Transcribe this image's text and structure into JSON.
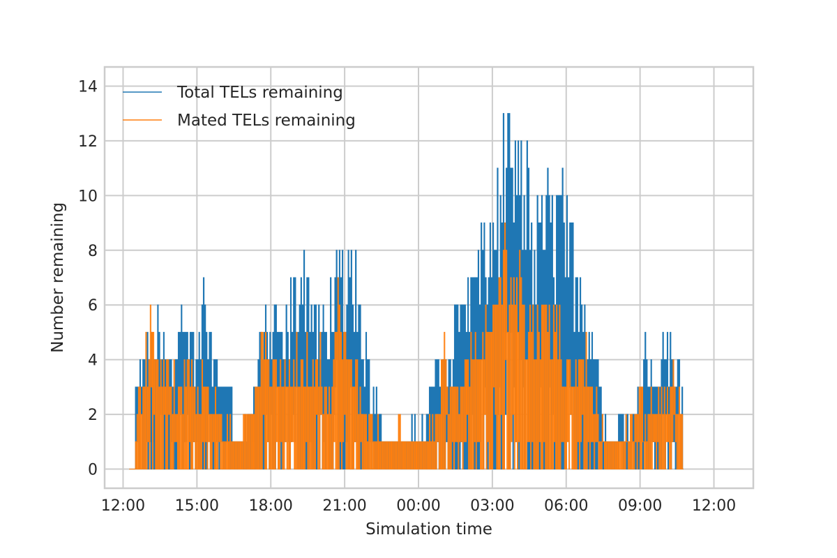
{
  "chart_data": {
    "type": "line",
    "title": "",
    "xlabel": "Simulation time",
    "ylabel": "Number remaining",
    "x_tick_labels": [
      "12:00",
      "15:00",
      "18:00",
      "21:00",
      "00:00",
      "03:00",
      "06:00",
      "09:00",
      "12:00"
    ],
    "y_ticks": [
      0,
      2,
      4,
      6,
      8,
      10,
      12,
      14
    ],
    "xlim_hours": [
      -0.75,
      25.6
    ],
    "ylim": [
      -0.7,
      14.7
    ],
    "grid": true,
    "legend_position": "top-left",
    "x_unit": "hours from 12:00",
    "series": [
      {
        "name": "Total TELs remaining",
        "color": "#1f77b4",
        "envelope": [
          {
            "x": 0.5,
            "y": 3
          },
          {
            "x": 0.75,
            "y": 4
          },
          {
            "x": 1.0,
            "y": 5
          },
          {
            "x": 1.25,
            "y": 6
          },
          {
            "x": 1.5,
            "y": 6
          },
          {
            "x": 1.75,
            "y": 5
          },
          {
            "x": 2.0,
            "y": 5
          },
          {
            "x": 2.25,
            "y": 6
          },
          {
            "x": 2.5,
            "y": 7
          },
          {
            "x": 2.75,
            "y": 6
          },
          {
            "x": 3.0,
            "y": 5
          },
          {
            "x": 3.25,
            "y": 7
          },
          {
            "x": 3.5,
            "y": 6
          },
          {
            "x": 3.75,
            "y": 5
          },
          {
            "x": 4.0,
            "y": 5
          },
          {
            "x": 4.25,
            "y": 4
          },
          {
            "x": 4.5,
            "y": 2
          },
          {
            "x": 4.75,
            "y": 1
          },
          {
            "x": 5.0,
            "y": 2
          },
          {
            "x": 5.25,
            "y": 3
          },
          {
            "x": 5.5,
            "y": 6
          },
          {
            "x": 5.75,
            "y": 6
          },
          {
            "x": 6.0,
            "y": 7
          },
          {
            "x": 6.25,
            "y": 6
          },
          {
            "x": 6.5,
            "y": 6
          },
          {
            "x": 6.75,
            "y": 7
          },
          {
            "x": 7.0,
            "y": 8
          },
          {
            "x": 7.25,
            "y": 9
          },
          {
            "x": 7.5,
            "y": 8
          },
          {
            "x": 7.75,
            "y": 7
          },
          {
            "x": 8.0,
            "y": 7
          },
          {
            "x": 8.25,
            "y": 6
          },
          {
            "x": 8.5,
            "y": 8
          },
          {
            "x": 8.75,
            "y": 9
          },
          {
            "x": 9.0,
            "y": 8
          },
          {
            "x": 9.25,
            "y": 9
          },
          {
            "x": 9.5,
            "y": 8
          },
          {
            "x": 9.75,
            "y": 6
          },
          {
            "x": 10.0,
            "y": 4
          },
          {
            "x": 10.25,
            "y": 3
          },
          {
            "x": 10.5,
            "y": 2
          },
          {
            "x": 10.75,
            "y": 1
          },
          {
            "x": 11.0,
            "y": 1
          },
          {
            "x": 11.25,
            "y": 2
          },
          {
            "x": 11.5,
            "y": 1
          },
          {
            "x": 11.75,
            "y": 2
          },
          {
            "x": 12.0,
            "y": 1
          },
          {
            "x": 12.25,
            "y": 2
          },
          {
            "x": 12.5,
            "y": 3
          },
          {
            "x": 12.75,
            "y": 4
          },
          {
            "x": 13.0,
            "y": 5
          },
          {
            "x": 13.25,
            "y": 5
          },
          {
            "x": 13.5,
            "y": 6
          },
          {
            "x": 13.75,
            "y": 7
          },
          {
            "x": 14.0,
            "y": 7
          },
          {
            "x": 14.25,
            "y": 8
          },
          {
            "x": 14.5,
            "y": 9
          },
          {
            "x": 14.75,
            "y": 10
          },
          {
            "x": 15.0,
            "y": 11
          },
          {
            "x": 15.25,
            "y": 12
          },
          {
            "x": 15.5,
            "y": 14
          },
          {
            "x": 15.75,
            "y": 13
          },
          {
            "x": 16.0,
            "y": 14
          },
          {
            "x": 16.25,
            "y": 13
          },
          {
            "x": 16.5,
            "y": 12
          },
          {
            "x": 16.75,
            "y": 10
          },
          {
            "x": 17.0,
            "y": 11
          },
          {
            "x": 17.25,
            "y": 11
          },
          {
            "x": 17.5,
            "y": 10
          },
          {
            "x": 17.75,
            "y": 12
          },
          {
            "x": 18.0,
            "y": 10
          },
          {
            "x": 18.25,
            "y": 9
          },
          {
            "x": 18.5,
            "y": 8
          },
          {
            "x": 18.75,
            "y": 7
          },
          {
            "x": 19.0,
            "y": 6
          },
          {
            "x": 19.25,
            "y": 5
          },
          {
            "x": 19.5,
            "y": 2
          },
          {
            "x": 19.75,
            "y": 1
          },
          {
            "x": 20.0,
            "y": 2
          },
          {
            "x": 20.25,
            "y": 2
          },
          {
            "x": 20.5,
            "y": 2
          },
          {
            "x": 20.75,
            "y": 3
          },
          {
            "x": 21.0,
            "y": 4
          },
          {
            "x": 21.25,
            "y": 5
          },
          {
            "x": 21.5,
            "y": 4
          },
          {
            "x": 21.75,
            "y": 4
          },
          {
            "x": 22.0,
            "y": 6
          },
          {
            "x": 22.25,
            "y": 5
          },
          {
            "x": 22.5,
            "y": 5
          },
          {
            "x": 22.75,
            "y": 4
          }
        ]
      },
      {
        "name": "Mated TELs remaining",
        "color": "#ff7f0e",
        "envelope": [
          {
            "x": 0.5,
            "y": 2
          },
          {
            "x": 0.75,
            "y": 4
          },
          {
            "x": 1.0,
            "y": 6
          },
          {
            "x": 1.25,
            "y": 5
          },
          {
            "x": 1.5,
            "y": 4
          },
          {
            "x": 1.75,
            "y": 5
          },
          {
            "x": 2.0,
            "y": 4
          },
          {
            "x": 2.25,
            "y": 4
          },
          {
            "x": 2.5,
            "y": 4
          },
          {
            "x": 2.75,
            "y": 5
          },
          {
            "x": 3.0,
            "y": 3
          },
          {
            "x": 3.25,
            "y": 4
          },
          {
            "x": 3.5,
            "y": 3
          },
          {
            "x": 3.75,
            "y": 3
          },
          {
            "x": 4.0,
            "y": 2
          },
          {
            "x": 4.25,
            "y": 2
          },
          {
            "x": 4.5,
            "y": 1
          },
          {
            "x": 4.75,
            "y": 1
          },
          {
            "x": 5.0,
            "y": 3
          },
          {
            "x": 5.25,
            "y": 2
          },
          {
            "x": 5.5,
            "y": 4
          },
          {
            "x": 5.75,
            "y": 6
          },
          {
            "x": 6.0,
            "y": 4
          },
          {
            "x": 6.25,
            "y": 5
          },
          {
            "x": 6.5,
            "y": 4
          },
          {
            "x": 6.75,
            "y": 4
          },
          {
            "x": 7.0,
            "y": 5
          },
          {
            "x": 7.25,
            "y": 4
          },
          {
            "x": 7.5,
            "y": 6
          },
          {
            "x": 7.75,
            "y": 4
          },
          {
            "x": 8.0,
            "y": 5
          },
          {
            "x": 8.25,
            "y": 3
          },
          {
            "x": 8.5,
            "y": 4
          },
          {
            "x": 8.75,
            "y": 8
          },
          {
            "x": 9.0,
            "y": 5
          },
          {
            "x": 9.25,
            "y": 5
          },
          {
            "x": 9.5,
            "y": 4
          },
          {
            "x": 9.75,
            "y": 3
          },
          {
            "x": 10.0,
            "y": 2
          },
          {
            "x": 10.25,
            "y": 2
          },
          {
            "x": 10.5,
            "y": 1
          },
          {
            "x": 10.75,
            "y": 1
          },
          {
            "x": 11.0,
            "y": 1
          },
          {
            "x": 11.25,
            "y": 2
          },
          {
            "x": 11.5,
            "y": 1
          },
          {
            "x": 11.75,
            "y": 1
          },
          {
            "x": 12.0,
            "y": 1
          },
          {
            "x": 12.25,
            "y": 2
          },
          {
            "x": 12.5,
            "y": 2
          },
          {
            "x": 12.75,
            "y": 3
          },
          {
            "x": 13.0,
            "y": 5
          },
          {
            "x": 13.25,
            "y": 3
          },
          {
            "x": 13.5,
            "y": 4
          },
          {
            "x": 13.75,
            "y": 4
          },
          {
            "x": 14.0,
            "y": 5
          },
          {
            "x": 14.25,
            "y": 5
          },
          {
            "x": 14.5,
            "y": 6
          },
          {
            "x": 14.75,
            "y": 7
          },
          {
            "x": 15.0,
            "y": 6
          },
          {
            "x": 15.25,
            "y": 8
          },
          {
            "x": 15.5,
            "y": 9
          },
          {
            "x": 15.75,
            "y": 10
          },
          {
            "x": 16.0,
            "y": 8
          },
          {
            "x": 16.25,
            "y": 7
          },
          {
            "x": 16.5,
            "y": 6
          },
          {
            "x": 16.75,
            "y": 7
          },
          {
            "x": 17.0,
            "y": 6
          },
          {
            "x": 17.25,
            "y": 7
          },
          {
            "x": 17.5,
            "y": 7
          },
          {
            "x": 17.75,
            "y": 6
          },
          {
            "x": 18.0,
            "y": 5
          },
          {
            "x": 18.25,
            "y": 5
          },
          {
            "x": 18.5,
            "y": 4
          },
          {
            "x": 18.75,
            "y": 5
          },
          {
            "x": 19.0,
            "y": 4
          },
          {
            "x": 19.25,
            "y": 3
          },
          {
            "x": 19.5,
            "y": 2
          },
          {
            "x": 19.75,
            "y": 1
          },
          {
            "x": 20.0,
            "y": 1
          },
          {
            "x": 20.25,
            "y": 1
          },
          {
            "x": 20.5,
            "y": 2
          },
          {
            "x": 20.75,
            "y": 2
          },
          {
            "x": 21.0,
            "y": 3
          },
          {
            "x": 21.25,
            "y": 2
          },
          {
            "x": 21.5,
            "y": 3
          },
          {
            "x": 21.75,
            "y": 4
          },
          {
            "x": 22.0,
            "y": 3
          },
          {
            "x": 22.25,
            "y": 5
          },
          {
            "x": 22.5,
            "y": 4
          },
          {
            "x": 22.75,
            "y": 2
          }
        ]
      }
    ]
  }
}
